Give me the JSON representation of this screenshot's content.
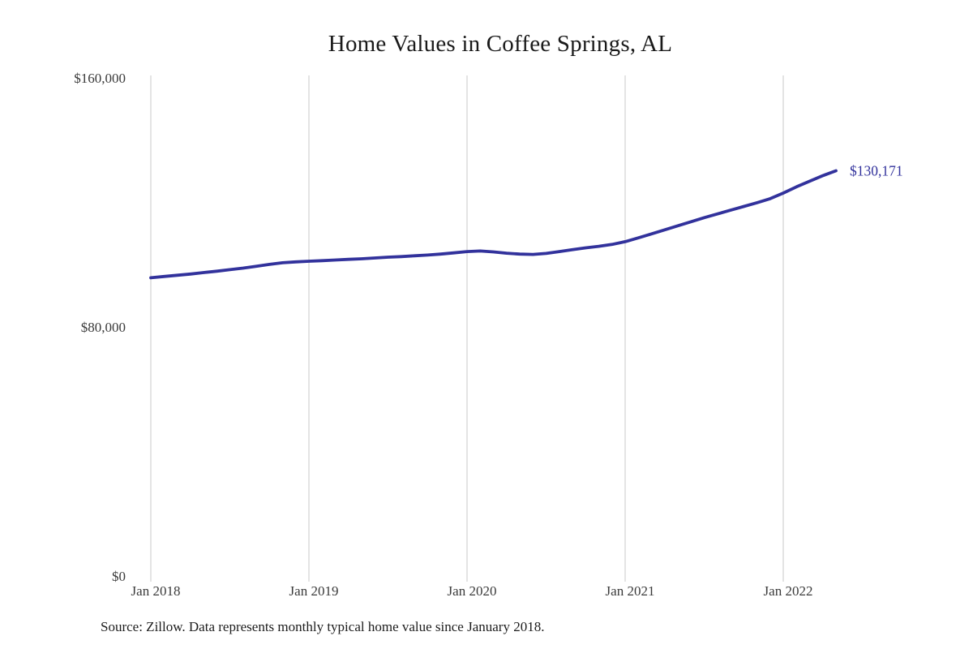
{
  "title": "Home Values in Coffee Springs, AL",
  "source_note": "Source: Zillow. Data represents monthly typical home value since January 2018.",
  "colors": {
    "line": "#32329c",
    "end_label": "#32329c",
    "gridline": "#c9c9c9",
    "axis_text": "#3a3a3a",
    "title_text": "#1a1a1a",
    "background": "#ffffff"
  },
  "chart_data": {
    "type": "line",
    "title": "Home Values in Coffee Springs, AL",
    "series_name": "Monthly typical home value",
    "x": [
      "Jan 2018",
      "Feb 2018",
      "Mar 2018",
      "Apr 2018",
      "May 2018",
      "Jun 2018",
      "Jul 2018",
      "Aug 2018",
      "Sep 2018",
      "Oct 2018",
      "Nov 2018",
      "Dec 2018",
      "Jan 2019",
      "Feb 2019",
      "Mar 2019",
      "Apr 2019",
      "May 2019",
      "Jun 2019",
      "Jul 2019",
      "Aug 2019",
      "Sep 2019",
      "Oct 2019",
      "Nov 2019",
      "Dec 2019",
      "Jan 2020",
      "Feb 2020",
      "Mar 2020",
      "Apr 2020",
      "May 2020",
      "Jun 2020",
      "Jul 2020",
      "Aug 2020",
      "Sep 2020",
      "Oct 2020",
      "Nov 2020",
      "Dec 2020",
      "Jan 2021",
      "Feb 2021",
      "Mar 2021",
      "Apr 2021",
      "May 2021",
      "Jun 2021",
      "Jul 2021",
      "Aug 2021",
      "Sep 2021",
      "Oct 2021",
      "Nov 2021",
      "Dec 2021",
      "Jan 2022",
      "Feb 2022",
      "Mar 2022",
      "Apr 2022",
      "May 2022"
    ],
    "values": [
      95800,
      96200,
      96600,
      97000,
      97450,
      97900,
      98400,
      98900,
      99500,
      100100,
      100600,
      100900,
      101100,
      101300,
      101500,
      101700,
      101900,
      102150,
      102400,
      102600,
      102850,
      103100,
      103400,
      103800,
      104200,
      104400,
      104100,
      103700,
      103400,
      103300,
      103600,
      104200,
      104800,
      105400,
      105900,
      106500,
      107400,
      108600,
      109900,
      111200,
      112500,
      113800,
      115100,
      116300,
      117500,
      118700,
      119900,
      121200,
      123000,
      125000,
      126800,
      128600,
      130171
    ],
    "last_value_label": "$130,171",
    "ylim": [
      0,
      160000
    ],
    "y_ticks": [
      {
        "value": 0,
        "label": "$0"
      },
      {
        "value": 80000,
        "label": "$80,000"
      },
      {
        "value": 160000,
        "label": "$160,000"
      }
    ],
    "x_ticks": [
      {
        "index": 0,
        "label": "Jan 2018"
      },
      {
        "index": 12,
        "label": "Jan 2019"
      },
      {
        "index": 24,
        "label": "Jan 2020"
      },
      {
        "index": 36,
        "label": "Jan 2021"
      },
      {
        "index": 48,
        "label": "Jan 2022"
      }
    ],
    "grid": "vertical-year-gridlines-only",
    "legend": "none",
    "xlabel": "",
    "ylabel": ""
  }
}
